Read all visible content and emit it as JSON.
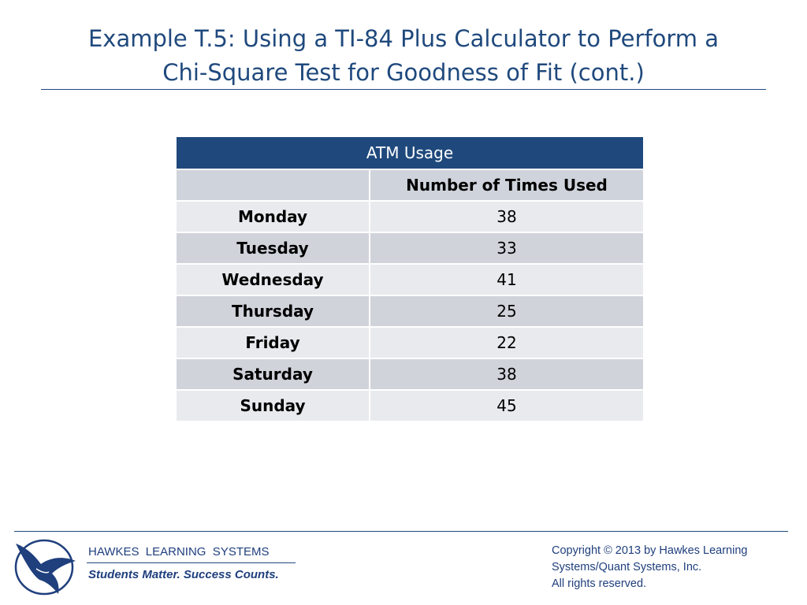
{
  "title": [
    "Example T.5: Using a TI-84 Plus Calculator to Perform a",
    "Chi-Square Test for Goodness of Fit (cont.)"
  ],
  "table": {
    "caption": "ATM Usage",
    "column_header": "Number of Times Used",
    "rows": [
      [
        "Monday",
        38
      ],
      [
        "Tuesday",
        33
      ],
      [
        "Wednesday",
        41
      ],
      [
        "Thursday",
        25
      ],
      [
        "Friday",
        22
      ],
      [
        "Saturday",
        38
      ],
      [
        "Sunday",
        45
      ]
    ]
  },
  "footer": {
    "company": "HAWKES  LEARNING  SYSTEMS",
    "tagline": "Students Matter. Success Counts.",
    "copyright": [
      "Copyright © 2013 by Hawkes Learning",
      "Systems/Quant Systems, Inc.",
      "All rights reserved."
    ]
  }
}
